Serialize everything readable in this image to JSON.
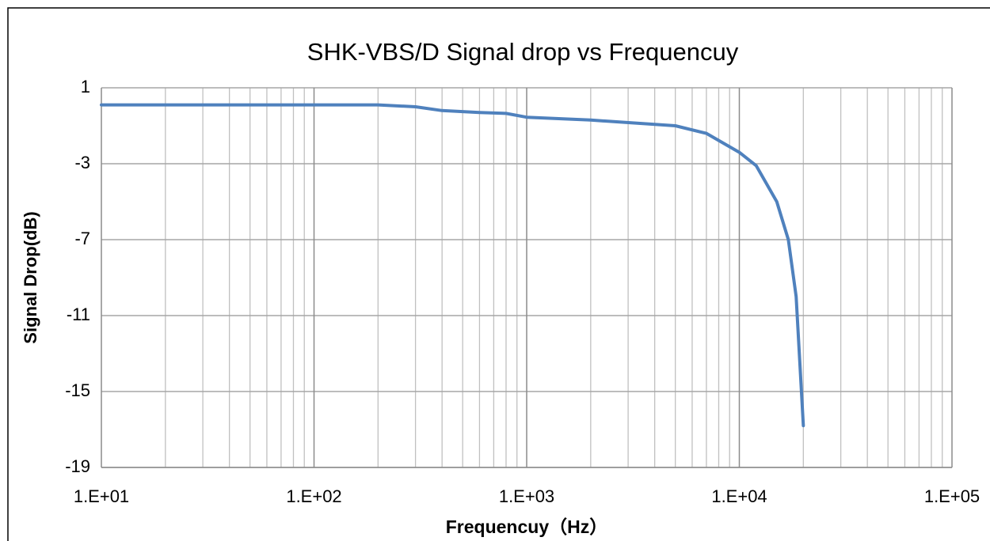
{
  "chart_data": {
    "type": "line",
    "title": "SHK-VBS/D Signal drop vs Frequencuy",
    "x_label": "Frequencuy（Hz）",
    "y_label": "Signal Drop(dB)",
    "x_scale": "log",
    "grid": true,
    "xlim": [
      10,
      100000
    ],
    "xticks": [
      {
        "value": 10,
        "label": "1.E+01"
      },
      {
        "value": 100,
        "label": "1.E+02"
      },
      {
        "value": 1000,
        "label": "1.E+03"
      },
      {
        "value": 10000,
        "label": "1.E+04"
      },
      {
        "value": 100000,
        "label": "1.E+05"
      }
    ],
    "xminor_ticks": [
      20,
      30,
      40,
      50,
      60,
      70,
      80,
      90,
      200,
      300,
      400,
      500,
      600,
      700,
      800,
      900,
      2000,
      3000,
      4000,
      5000,
      6000,
      7000,
      8000,
      9000,
      20000,
      30000,
      40000,
      50000,
      60000,
      70000,
      80000,
      90000
    ],
    "ylim": [
      -19,
      1
    ],
    "yticks": [
      1,
      -3,
      -7,
      -11,
      -15,
      -19
    ],
    "x": [
      10,
      20,
      50,
      100,
      200,
      300,
      400,
      600,
      800,
      1000,
      2000,
      5000,
      7000,
      10000,
      12000,
      15000,
      17000,
      18500,
      20000
    ],
    "series": [
      {
        "name": "Signal Drop",
        "color": "#4f81bd",
        "values": [
          0.1,
          0.1,
          0.1,
          0.1,
          0.1,
          0.0,
          -0.2,
          -0.3,
          -0.35,
          -0.55,
          -0.7,
          -1.0,
          -1.4,
          -2.4,
          -3.1,
          -5.0,
          -7.0,
          -10,
          -16.8
        ]
      }
    ]
  }
}
